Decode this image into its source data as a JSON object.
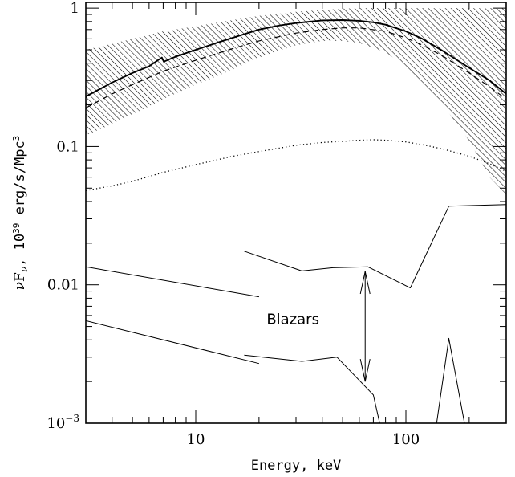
{
  "chart_data": {
    "type": "line",
    "title": "",
    "xlabel": "Energy, keV",
    "ylabel_parts": {
      "nu": "ν",
      "F": "F",
      "sub": "ν",
      "mid": ", 10",
      "exp": "39",
      "unit": " erg/s/Mpc",
      "unit_exp": "3"
    },
    "xscale": "log",
    "yscale": "log",
    "xlim": [
      3,
      300
    ],
    "ylim": [
      0.001,
      1.1
    ],
    "grid": false,
    "x_ticks": [
      {
        "value": 10,
        "label": "10"
      },
      {
        "value": 100,
        "label": "100"
      }
    ],
    "y_ticks": [
      {
        "value": 0.001,
        "base": "10",
        "exp": "−3"
      },
      {
        "value": 0.01,
        "label": "0.01"
      },
      {
        "value": 0.1,
        "label": "0.1"
      },
      {
        "value": 1,
        "label": "1"
      }
    ],
    "band": {
      "style": "hatched",
      "x": [
        3,
        5,
        7,
        10,
        15,
        20,
        30,
        40,
        50,
        60,
        80,
        100,
        120,
        150,
        200,
        250,
        300
      ],
      "upper": [
        0.5,
        0.6,
        0.68,
        0.74,
        0.82,
        0.88,
        0.94,
        0.97,
        0.99,
        1.0,
        1.0,
        1.0,
        1.0,
        1.0,
        1.0,
        1.0,
        1.0
      ],
      "lower": [
        0.12,
        0.17,
        0.22,
        0.28,
        0.36,
        0.44,
        0.54,
        0.58,
        0.58,
        0.56,
        0.48,
        0.38,
        0.29,
        0.2,
        0.11,
        0.06,
        0.045
      ]
    },
    "series": [
      {
        "style": "solid-thick",
        "x": [
          3,
          4,
          5,
          6,
          6.9,
          7.05,
          8,
          10,
          13,
          16,
          20,
          25,
          30,
          40,
          50,
          60,
          70,
          80,
          100,
          120,
          150,
          200,
          250,
          300
        ],
        "y": [
          0.23,
          0.29,
          0.34,
          0.38,
          0.44,
          0.41,
          0.445,
          0.5,
          0.57,
          0.63,
          0.7,
          0.75,
          0.78,
          0.815,
          0.82,
          0.81,
          0.79,
          0.76,
          0.68,
          0.6,
          0.49,
          0.37,
          0.3,
          0.24
        ]
      },
      {
        "style": "dashed",
        "x": [
          3,
          4,
          5,
          7,
          10,
          15,
          20,
          30,
          40,
          50,
          60,
          80,
          100,
          120,
          150,
          200,
          250,
          300
        ],
        "y": [
          0.19,
          0.24,
          0.28,
          0.35,
          0.42,
          0.51,
          0.58,
          0.66,
          0.7,
          0.72,
          0.72,
          0.68,
          0.61,
          0.54,
          0.45,
          0.34,
          0.27,
          0.22
        ]
      },
      {
        "style": "dotted",
        "x": [
          3,
          4,
          5,
          7,
          10,
          15,
          20,
          30,
          40,
          50,
          60,
          70,
          80,
          100,
          120,
          150,
          200,
          250,
          300
        ],
        "y": [
          0.048,
          0.052,
          0.056,
          0.065,
          0.074,
          0.085,
          0.092,
          0.102,
          0.107,
          0.109,
          0.111,
          0.112,
          0.111,
          0.108,
          0.103,
          0.096,
          0.085,
          0.075,
          0.066
        ]
      },
      {
        "style": "solid-thin",
        "x": [
          3,
          20
        ],
        "y": [
          0.0135,
          0.0082
        ]
      },
      {
        "style": "solid-thin",
        "x": [
          3,
          20
        ],
        "y": [
          0.0055,
          0.0027
        ]
      },
      {
        "style": "solid-thin",
        "x": [
          17,
          32,
          45,
          66,
          105,
          160,
          300
        ],
        "y": [
          0.0175,
          0.0126,
          0.0133,
          0.0135,
          0.0095,
          0.037,
          0.038
        ]
      },
      {
        "style": "solid-thin",
        "x": [
          17,
          32,
          47,
          70,
          75
        ],
        "y": [
          0.0031,
          0.0028,
          0.003,
          0.0016,
          0.001
        ]
      },
      {
        "style": "solid-thin",
        "x": [
          140,
          160,
          190
        ],
        "y": [
          0.001,
          0.0041,
          0.001
        ]
      }
    ],
    "annotations": [
      {
        "text": "Blazars",
        "x": 29,
        "y": 0.0052
      },
      {
        "type": "double-arrow",
        "x": 64,
        "y_from": 0.0125,
        "y_to": 0.002
      }
    ]
  }
}
